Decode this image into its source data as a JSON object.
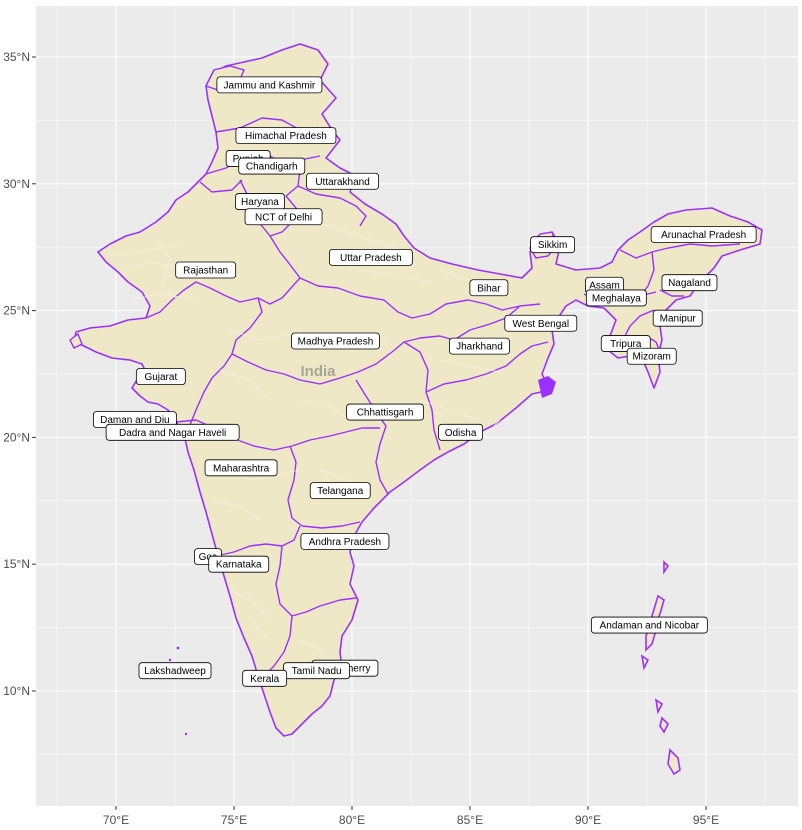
{
  "map": {
    "watermark": "India",
    "x_axis": {
      "ticks": [
        {
          "value": 70,
          "label": "70°E"
        },
        {
          "value": 75,
          "label": "75°E"
        },
        {
          "value": 80,
          "label": "80°E"
        },
        {
          "value": 85,
          "label": "85°E"
        },
        {
          "value": 90,
          "label": "90°E"
        },
        {
          "value": 95,
          "label": "95°E"
        }
      ]
    },
    "y_axis": {
      "ticks": [
        {
          "value": 10,
          "label": "10°N"
        },
        {
          "value": 15,
          "label": "15°N"
        },
        {
          "value": 20,
          "label": "20°N"
        },
        {
          "value": 25,
          "label": "25°N"
        },
        {
          "value": 30,
          "label": "30°N"
        },
        {
          "value": 35,
          "label": "35°N"
        }
      ]
    },
    "colors": {
      "panel_background": "#ebebeb",
      "grid": "#ffffff",
      "land_fill": "#eee8c6",
      "state_border": "#9b30ff",
      "district_border": "#f7f3df",
      "label_fill": "#ffffff",
      "label_border": "#000000"
    },
    "state_labels": [
      {
        "name": "Jammu and Kashmir",
        "lon": 76.5,
        "lat": 33.9
      },
      {
        "name": "Himachal Pradesh",
        "lon": 77.2,
        "lat": 31.9
      },
      {
        "name": "Punjab",
        "lon": 75.6,
        "lat": 31.0
      },
      {
        "name": "Chandigarh",
        "lon": 76.6,
        "lat": 30.7
      },
      {
        "name": "Uttarakhand",
        "lon": 79.6,
        "lat": 30.1
      },
      {
        "name": "Haryana",
        "lon": 76.1,
        "lat": 29.3
      },
      {
        "name": "NCT of Delhi",
        "lon": 77.1,
        "lat": 28.7
      },
      {
        "name": "Rajasthan",
        "lon": 73.8,
        "lat": 26.6
      },
      {
        "name": "Uttar Pradesh",
        "lon": 80.8,
        "lat": 27.1
      },
      {
        "name": "Sikkim",
        "lon": 88.5,
        "lat": 27.6
      },
      {
        "name": "Arunachal Pradesh",
        "lon": 94.9,
        "lat": 28.0
      },
      {
        "name": "Assam",
        "lon": 90.7,
        "lat": 26.0
      },
      {
        "name": "Nagaland",
        "lon": 94.3,
        "lat": 26.1
      },
      {
        "name": "Bihar",
        "lon": 85.8,
        "lat": 25.9
      },
      {
        "name": "Meghalaya",
        "lon": 91.2,
        "lat": 25.5
      },
      {
        "name": "West Bengal",
        "lon": 88.0,
        "lat": 24.5
      },
      {
        "name": "Manipur",
        "lon": 93.8,
        "lat": 24.7
      },
      {
        "name": "Madhya Pradesh",
        "lon": 79.3,
        "lat": 23.8
      },
      {
        "name": "Jharkhand",
        "lon": 85.4,
        "lat": 23.6
      },
      {
        "name": "Tripura",
        "lon": 91.6,
        "lat": 23.7
      },
      {
        "name": "Mizoram",
        "lon": 92.7,
        "lat": 23.2
      },
      {
        "name": "Gujarat",
        "lon": 71.9,
        "lat": 22.4
      },
      {
        "name": "Daman and Diu",
        "lon": 70.8,
        "lat": 20.7
      },
      {
        "name": "Dadra and Nagar Haveli",
        "lon": 72.4,
        "lat": 20.2
      },
      {
        "name": "Chhattisgarh",
        "lon": 81.4,
        "lat": 21.0
      },
      {
        "name": "Odisha",
        "lon": 84.6,
        "lat": 20.2
      },
      {
        "name": "Maharashtra",
        "lon": 75.3,
        "lat": 18.8
      },
      {
        "name": "Telangana",
        "lon": 79.5,
        "lat": 17.9
      },
      {
        "name": "Andhra Pradesh",
        "lon": 79.7,
        "lat": 15.9
      },
      {
        "name": "Goa",
        "lon": 73.9,
        "lat": 15.3
      },
      {
        "name": "Karnataka",
        "lon": 75.2,
        "lat": 15.0
      },
      {
        "name": "Andaman and Nicobar",
        "lon": 92.6,
        "lat": 12.6
      },
      {
        "name": "Lakshadweep",
        "lon": 72.5,
        "lat": 10.8
      },
      {
        "name": "Puducherry",
        "lon": 79.7,
        "lat": 10.9
      },
      {
        "name": "Tamil Nadu",
        "lon": 78.5,
        "lat": 10.8
      },
      {
        "name": "Kerala",
        "lon": 76.3,
        "lat": 10.5
      }
    ]
  }
}
